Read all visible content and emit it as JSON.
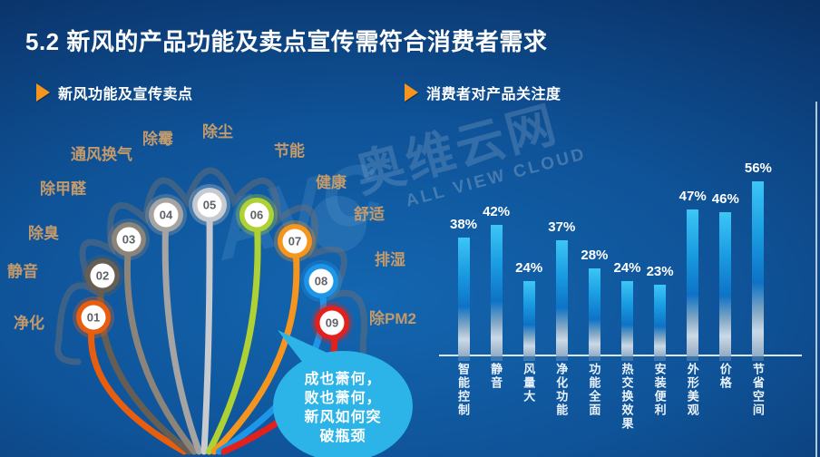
{
  "title": "5.2 新风的产品功能及卖点宣传需符合消费者需求",
  "sections": {
    "left": {
      "header": "新风功能及宣传卖点"
    },
    "right": {
      "header": "消费者对产品关注度"
    }
  },
  "fan": {
    "items": [
      {
        "num": "01",
        "color": "#E85D0E"
      },
      {
        "num": "02",
        "color": "#665E52"
      },
      {
        "num": "03",
        "color": "#8C8478"
      },
      {
        "num": "04",
        "color": "#A6A4A2"
      },
      {
        "num": "05",
        "color": "#C7CACF"
      },
      {
        "num": "06",
        "color": "#AFD133"
      },
      {
        "num": "07",
        "color": "#F6951E"
      },
      {
        "num": "08",
        "color": "#1E96E8"
      },
      {
        "num": "09",
        "color": "#E2211C"
      }
    ],
    "labels": [
      "净化",
      "静音",
      "除臭",
      "除甲醛",
      "通风换气",
      "除霉",
      "除尘",
      "节能",
      "健康",
      "舒适",
      "排湿",
      "除PM2.5"
    ],
    "bubble": {
      "color": "#2CB3E8",
      "lines": [
        "成也萧何，",
        "败也萧何，",
        "新风如何突",
        "破瓶颈"
      ]
    }
  },
  "chart_data": {
    "type": "bar",
    "categories": [
      "智能控制",
      "静音",
      "风量大",
      "净化功能",
      "功能全面",
      "热交换效果",
      "安装便利",
      "外形美观",
      "价格",
      "节省空间"
    ],
    "values": [
      38,
      42,
      24,
      37,
      28,
      24,
      23,
      47,
      46,
      56
    ],
    "unit": "%",
    "title": "消费者对产品关注度",
    "xlabel": "",
    "ylabel": "",
    "ylim": [
      0,
      60
    ],
    "grid": false,
    "value_labels": true,
    "bar_color": "#1A9CE1"
  },
  "watermark": {
    "logo": "AVC",
    "cn": "奥维云网",
    "en": "ALL VIEW CLOUD"
  }
}
